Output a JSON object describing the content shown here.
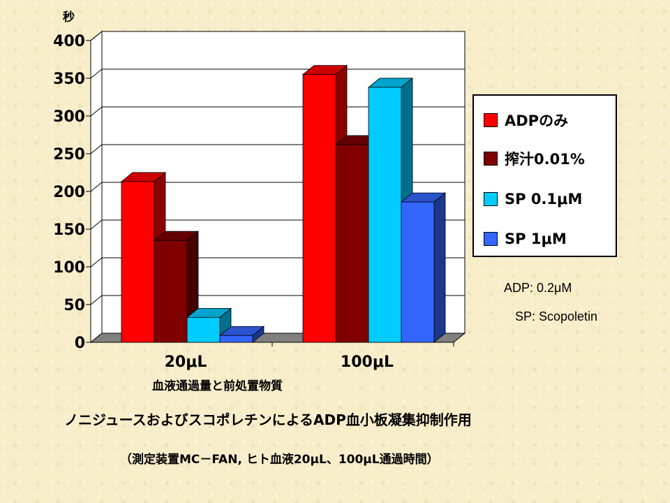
{
  "chart_data": {
    "type": "bar",
    "title": "ノニジュースおよびスコポレチンによるADP血小板凝集抑制作用",
    "subtitle": "（測定装置MC－FAN, ヒト血液20μL、100μL通過時間）",
    "xlabel": "血液通過量と前処置物質",
    "ylabel": "秒",
    "categories": [
      "20μL",
      "100μL"
    ],
    "ylim": [
      0,
      400
    ],
    "yticks": [
      0,
      50,
      100,
      150,
      200,
      250,
      300,
      350,
      400
    ],
    "grid": true,
    "legend_position": "right",
    "series": [
      {
        "name": "ADPのみ",
        "values": [
          213,
          355
        ],
        "color": "#ff0000"
      },
      {
        "name": "搾汁0.01%",
        "values": [
          135,
          262
        ],
        "color": "#800000"
      },
      {
        "name": "SP 0.1μM",
        "values": [
          33,
          338
        ],
        "color": "#00ccff"
      },
      {
        "name": "SP 1μM",
        "values": [
          9,
          186
        ],
        "color": "#3366ff"
      }
    ]
  },
  "legend": {
    "items": [
      {
        "label": "ADPのみ",
        "color": "#ff0000"
      },
      {
        "label": "搾汁0.01%",
        "color": "#800000"
      },
      {
        "label": "SP 0.1μM",
        "color": "#00ccff"
      },
      {
        "label": "SP 1μM",
        "color": "#3366ff"
      }
    ]
  },
  "notes": {
    "adp": "ADP: 0.2μM",
    "sp": "SP:  Scopoletin"
  }
}
